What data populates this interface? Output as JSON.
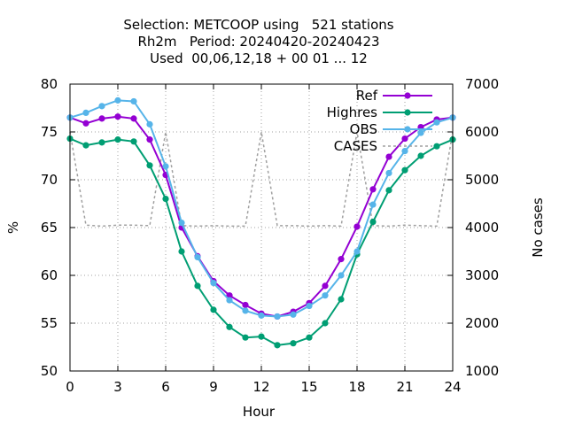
{
  "chart_data": {
    "type": "line",
    "title": [
      "Selection: METCOOP using   521 stations",
      "Rh2m   Period: 20240420-20240423",
      "Used  00,06,12,18 + 00 01 ... 12"
    ],
    "xlabel": "Hour",
    "ylabel": "%",
    "y2label": "No cases",
    "xlim": [
      0,
      24
    ],
    "ylim": [
      50,
      80
    ],
    "y2lim": [
      1000,
      7000
    ],
    "xticks": [
      "0",
      "3",
      "6",
      "9",
      "12",
      "15",
      "18",
      "21",
      "24"
    ],
    "yticks": [
      "50",
      "55",
      "60",
      "65",
      "70",
      "75",
      "80"
    ],
    "y2ticks": [
      "1000",
      "2000",
      "3000",
      "4000",
      "5000",
      "6000",
      "7000"
    ],
    "grid": true,
    "legend_position": "top-right",
    "x": [
      0,
      1,
      2,
      3,
      4,
      5,
      6,
      7,
      8,
      9,
      10,
      11,
      12,
      13,
      14,
      15,
      16,
      17,
      18,
      19,
      20,
      21,
      22,
      23,
      24
    ],
    "series": [
      {
        "name": "Ref",
        "color": "#9400d3",
        "marker": "filled-circle",
        "axis": "left",
        "values": [
          76.5,
          75.9,
          76.4,
          76.6,
          76.4,
          74.2,
          70.5,
          65.0,
          62.0,
          59.4,
          57.9,
          56.9,
          56.0,
          55.7,
          56.2,
          57.1,
          58.9,
          61.7,
          65.1,
          69.0,
          72.4,
          74.3,
          75.5,
          76.3,
          76.5
        ]
      },
      {
        "name": "Highres",
        "color": "#009e73",
        "marker": "filled-circle",
        "axis": "left",
        "values": [
          74.3,
          73.6,
          73.9,
          74.2,
          74.0,
          71.5,
          68.0,
          62.5,
          58.9,
          56.4,
          54.6,
          53.5,
          53.6,
          52.7,
          52.9,
          53.5,
          55.0,
          57.5,
          62.2,
          65.6,
          68.9,
          71.0,
          72.5,
          73.5,
          74.2
        ]
      },
      {
        "name": "OBS",
        "color": "#56b4e9",
        "marker": "filled-circle",
        "axis": "left",
        "values": [
          76.5,
          77.0,
          77.7,
          78.3,
          78.2,
          75.8,
          71.4,
          65.5,
          61.9,
          59.2,
          57.4,
          56.3,
          55.8,
          55.7,
          55.9,
          56.8,
          57.9,
          60.0,
          62.5,
          67.4,
          70.7,
          73.0,
          74.9,
          76.0,
          76.5
        ]
      },
      {
        "name": "CASES",
        "color": "#a0a0a0",
        "marker": "none",
        "dash": "dotted",
        "axis": "right",
        "values": [
          6000,
          4050,
          4030,
          4050,
          4050,
          4040,
          6000,
          4040,
          4030,
          4040,
          4030,
          4030,
          6000,
          4040,
          4040,
          4030,
          4040,
          4030,
          6000,
          4040,
          4030,
          4050,
          4040,
          4030,
          6000
        ]
      }
    ]
  }
}
